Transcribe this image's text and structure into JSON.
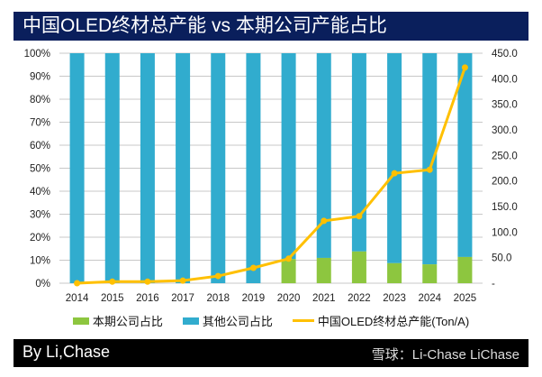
{
  "title": "中国OLED终材总产能 vs 本期公司产能占比",
  "footer": {
    "byline": "By Li,Chase",
    "brand": "雪球：Li-Chase  LiChase"
  },
  "colors": {
    "company": "#8dc63f",
    "others": "#31acce",
    "capacity": "#ffc000",
    "title_bg": "#0a1f5c"
  },
  "chart_data": {
    "type": "bar+line",
    "categories": [
      "2014",
      "2015",
      "2016",
      "2017",
      "2018",
      "2019",
      "2020",
      "2021",
      "2022",
      "2023",
      "2024",
      "2025"
    ],
    "series": [
      {
        "name": "本期公司占比",
        "type": "stacked-bar",
        "axis": "left",
        "values": [
          0,
          0,
          0,
          0,
          0,
          0,
          10.5,
          11,
          13.8,
          8.7,
          8.2,
          11.4
        ]
      },
      {
        "name": "其他公司占比",
        "type": "stacked-bar",
        "axis": "left",
        "values": [
          100,
          100,
          100,
          100,
          100,
          100,
          89.5,
          89,
          86.2,
          91.3,
          91.8,
          88.6
        ]
      },
      {
        "name": "中国OLED终材总产能(Ton/A)",
        "type": "line",
        "axis": "right",
        "values": [
          0,
          3,
          3,
          5,
          14,
          30,
          48,
          122,
          131,
          215,
          222,
          422
        ]
      }
    ],
    "left_axis": {
      "range": [
        0,
        100
      ],
      "ticks": [
        "0%",
        "10%",
        "20%",
        "30%",
        "40%",
        "50%",
        "60%",
        "70%",
        "80%",
        "90%",
        "100%"
      ]
    },
    "right_axis": {
      "range": [
        0,
        450
      ],
      "ticks": [
        "-",
        "50.0",
        "100.0",
        "150.0",
        "200.0",
        "250.0",
        "300.0",
        "350.0",
        "400.0",
        "450.0"
      ]
    },
    "grid": true,
    "legend": "bottom"
  }
}
